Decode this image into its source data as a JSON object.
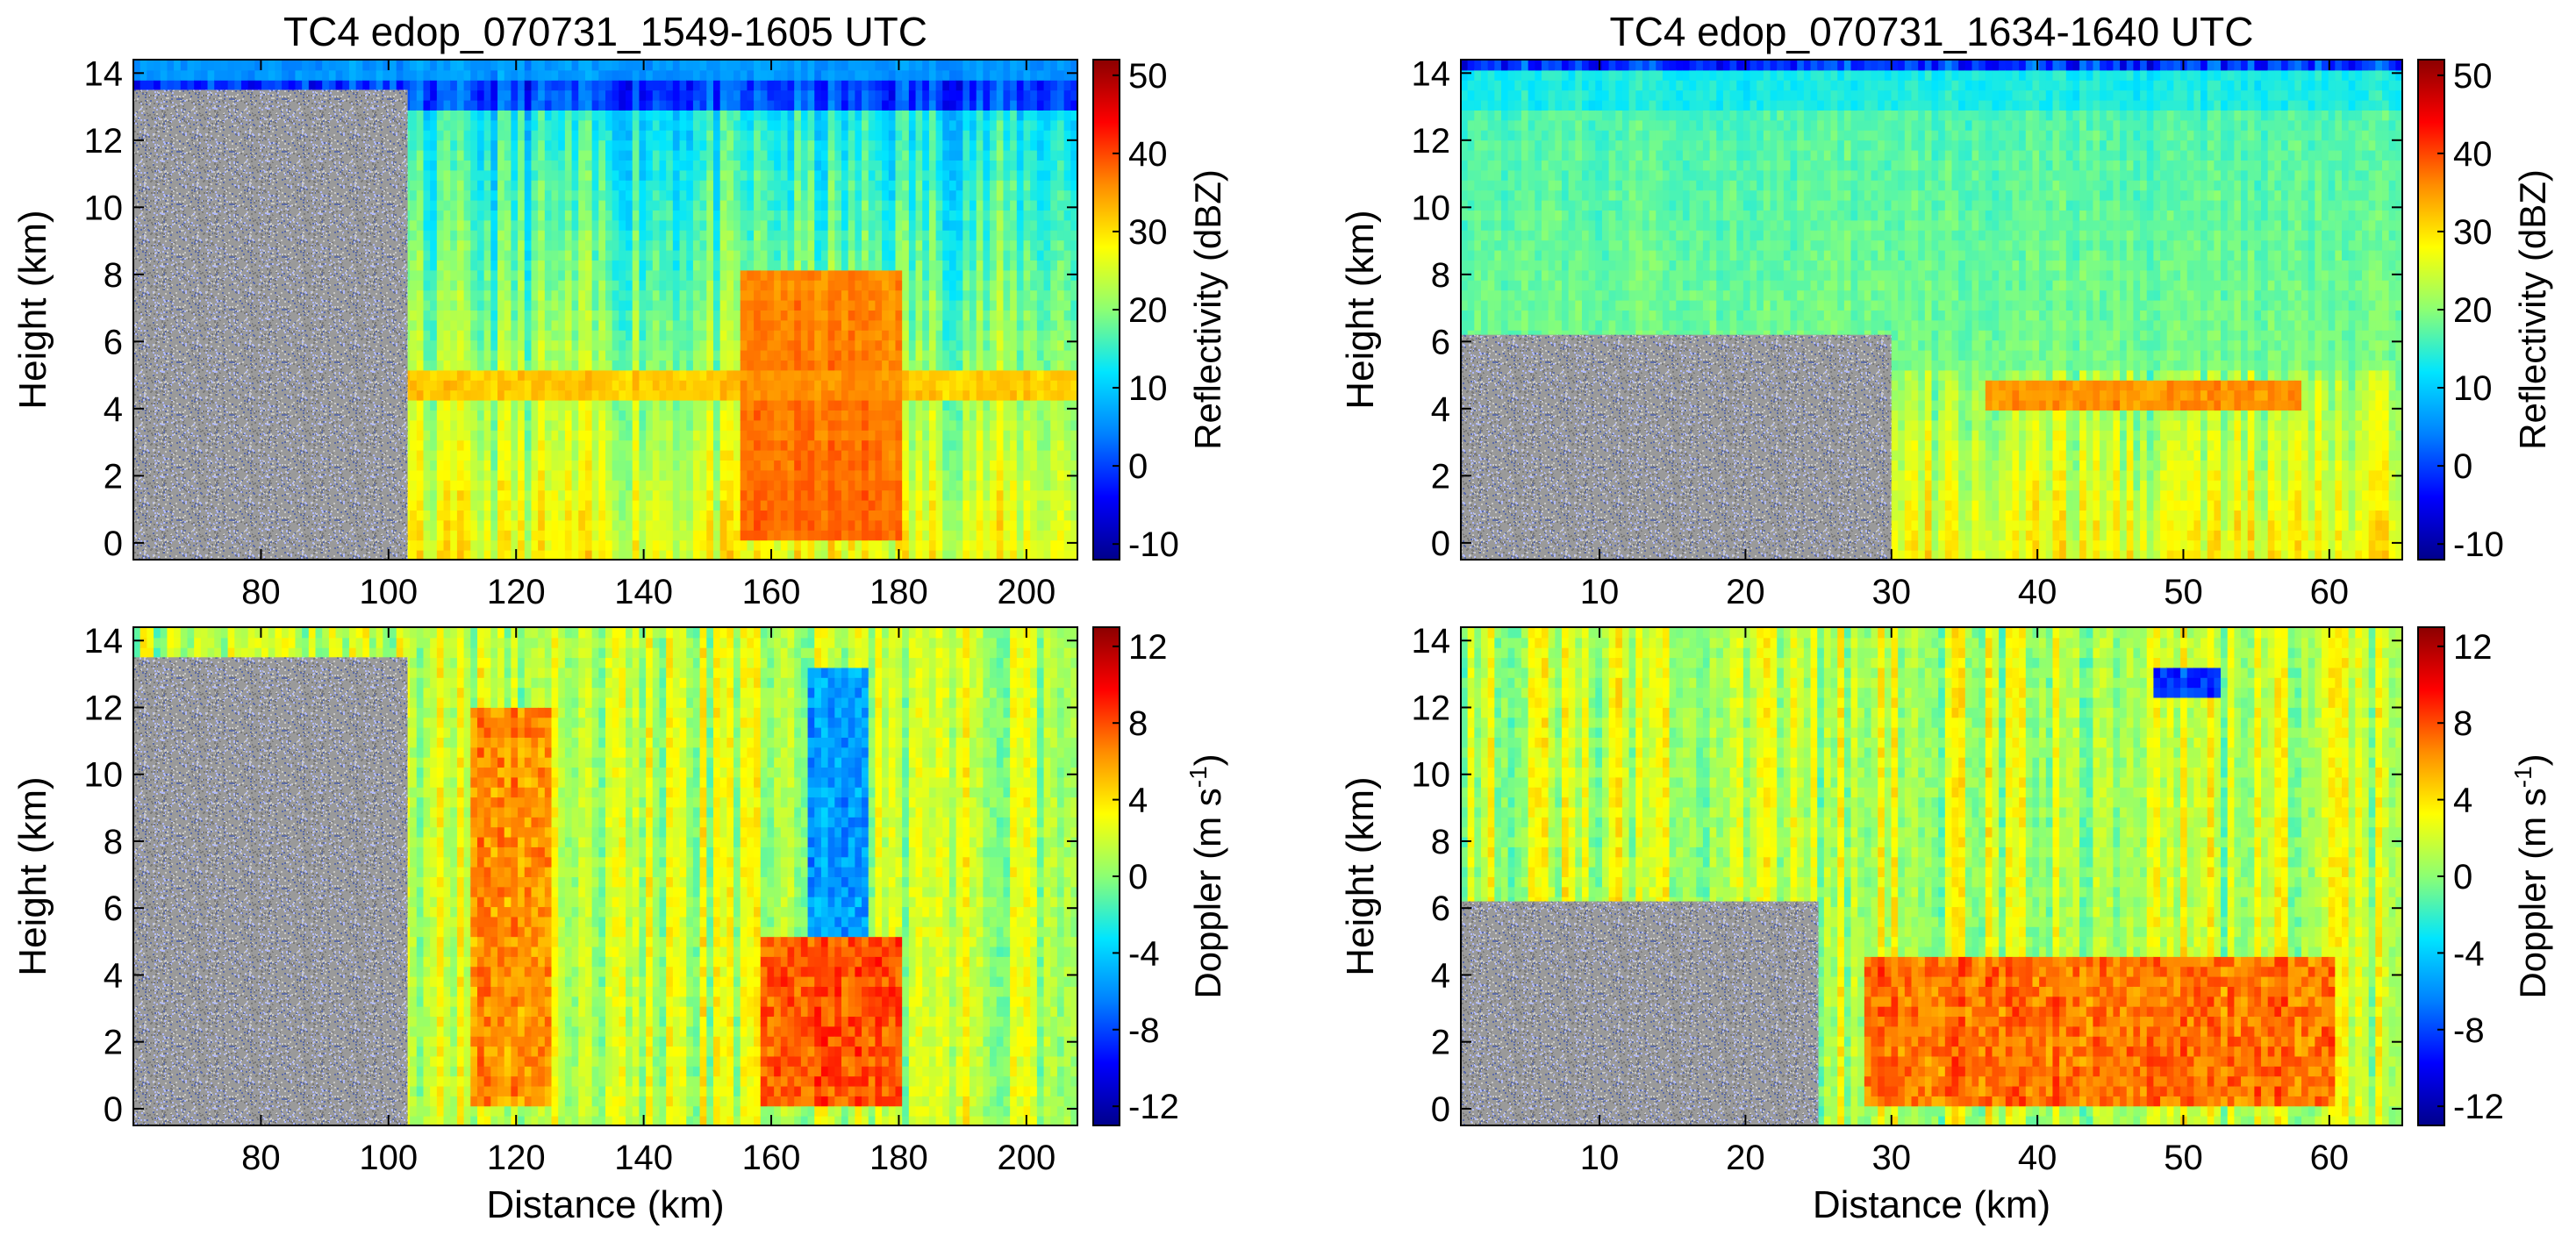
{
  "figure": {
    "colormap": [
      "#00008b",
      "#0000ff",
      "#0080ff",
      "#00e5ff",
      "#8cff73",
      "#ffff00",
      "#ff8c00",
      "#ff0000",
      "#8b0000"
    ],
    "noise_colors": [
      "#7a7a7a",
      "#9a9a9a",
      "#c8c8c8",
      "#5a6aa8",
      "#b0b9ff"
    ]
  },
  "chart_data": [
    {
      "type": "heatmap",
      "title": "TC4 edop_070731_1549-1605 UTC",
      "xlabel": "",
      "ylabel": "Height (km)",
      "xlim": [
        60,
        208
      ],
      "ylim": [
        -0.5,
        14.4
      ],
      "x_ticks": [
        80,
        100,
        120,
        140,
        160,
        180,
        200
      ],
      "x_tick_labels": [
        "80",
        "100",
        "120",
        "140",
        "160",
        "180",
        "200"
      ],
      "y_ticks": [
        0,
        2,
        4,
        6,
        8,
        10,
        12,
        14
      ],
      "y_tick_labels": [
        "0",
        "2",
        "4",
        "6",
        "8",
        "10",
        "12",
        "14"
      ],
      "colorbar": {
        "label": "Reflectivity (dBZ)",
        "range": [
          -12,
          52
        ],
        "ticks": [
          -10,
          0,
          10,
          20,
          30,
          40,
          50
        ],
        "tick_labels": [
          "-10",
          "0",
          "10",
          "20",
          "30",
          "40",
          "50"
        ]
      },
      "no_echo_region": {
        "x_start": 60,
        "x_end": 103,
        "top_km": 13.5
      },
      "features": [
        {
          "name": "convective core",
          "x_range": [
            155,
            180
          ],
          "height_range": [
            0,
            8
          ],
          "value": 42
        },
        {
          "name": "melting layer bright band",
          "height": 4.5,
          "value": 35
        },
        {
          "name": "anvil top",
          "height": 14,
          "value": 8
        }
      ]
    },
    {
      "type": "heatmap",
      "title": "TC4 edop_070731_1634-1640 UTC",
      "xlabel": "",
      "ylabel": "Height (km)",
      "xlim": [
        0.5,
        65
      ],
      "ylim": [
        -0.5,
        14.4
      ],
      "x_ticks": [
        10,
        20,
        30,
        40,
        50,
        60
      ],
      "x_tick_labels": [
        "10",
        "20",
        "30",
        "40",
        "50",
        "60"
      ],
      "y_ticks": [
        0,
        2,
        4,
        6,
        8,
        10,
        12,
        14
      ],
      "y_tick_labels": [
        "0",
        "2",
        "4",
        "6",
        "8",
        "10",
        "12",
        "14"
      ],
      "colorbar": {
        "label": "Reflectivity (dBZ)",
        "range": [
          -12,
          52
        ],
        "ticks": [
          -10,
          0,
          10,
          20,
          30,
          40,
          50
        ],
        "tick_labels": [
          "-10",
          "0",
          "10",
          "20",
          "30",
          "40",
          "50"
        ]
      },
      "no_echo_region": {
        "x_start": 0.5,
        "x_end": 30,
        "top_km": 6.2
      },
      "features": [
        {
          "name": "bright band",
          "x_range": [
            36,
            58
          ],
          "height": 4.4,
          "value": 40
        },
        {
          "name": "stratiform upper cloud",
          "height_range": [
            5,
            14
          ],
          "value": 18
        }
      ]
    },
    {
      "type": "heatmap",
      "title": "",
      "xlabel": "Distance (km)",
      "ylabel": "Height (km)",
      "xlim": [
        60,
        208
      ],
      "ylim": [
        -0.5,
        14.4
      ],
      "x_ticks": [
        80,
        100,
        120,
        140,
        160,
        180,
        200
      ],
      "x_tick_labels": [
        "80",
        "100",
        "120",
        "140",
        "160",
        "180",
        "200"
      ],
      "y_ticks": [
        0,
        2,
        4,
        6,
        8,
        10,
        12,
        14
      ],
      "y_tick_labels": [
        "0",
        "2",
        "4",
        "6",
        "8",
        "10",
        "12",
        "14"
      ],
      "colorbar": {
        "label": "Doppler (m s-1)",
        "label_main": "Doppler (m s",
        "label_sup": "-1",
        "label_end": ")",
        "range": [
          -13,
          13
        ],
        "ticks": [
          -12,
          -8,
          -4,
          0,
          4,
          8,
          12
        ],
        "tick_labels": [
          "-12",
          "-8",
          "-4",
          "0",
          "4",
          "8",
          "12"
        ]
      },
      "no_echo_region": {
        "x_start": 60,
        "x_end": 103,
        "top_km": 13.5
      },
      "features": [
        {
          "name": "updraft column",
          "x_range": [
            112,
            125
          ],
          "height_range": [
            0,
            12
          ],
          "value": 8
        },
        {
          "name": "core",
          "x_range": [
            158,
            180
          ],
          "height_range": [
            0,
            5
          ],
          "value": 10
        },
        {
          "name": "downdraft",
          "x_range": [
            165,
            175
          ],
          "height_range": [
            5,
            13
          ],
          "value": -8
        }
      ]
    },
    {
      "type": "heatmap",
      "title": "",
      "xlabel": "Distance (km)",
      "ylabel": "Height (km)",
      "xlim": [
        0.5,
        65
      ],
      "ylim": [
        -0.5,
        14.4
      ],
      "x_ticks": [
        10,
        20,
        30,
        40,
        50,
        60
      ],
      "x_tick_labels": [
        "10",
        "20",
        "30",
        "40",
        "50",
        "60"
      ],
      "y_ticks": [
        0,
        2,
        4,
        6,
        8,
        10,
        12,
        14
      ],
      "y_tick_labels": [
        "0",
        "2",
        "4",
        "6",
        "8",
        "10",
        "12",
        "14"
      ],
      "colorbar": {
        "label": "Doppler (m s-1)",
        "label_main": "Doppler (m s",
        "label_sup": "-1",
        "label_end": ")",
        "range": [
          -13,
          13
        ],
        "ticks": [
          -12,
          -8,
          -4,
          0,
          4,
          8,
          12
        ],
        "tick_labels": [
          "-12",
          "-8",
          "-4",
          "0",
          "4",
          "8",
          "12"
        ]
      },
      "no_echo_region": {
        "x_start": 0.5,
        "x_end": 25,
        "top_km": 6.2
      },
      "features": [
        {
          "name": "strong downdraft",
          "x": 50,
          "height": 12.5,
          "value": -12
        },
        {
          "name": "fall speed layer",
          "x_range": [
            28,
            60
          ],
          "height_range": [
            0,
            4.5
          ],
          "value": 9
        }
      ]
    }
  ]
}
